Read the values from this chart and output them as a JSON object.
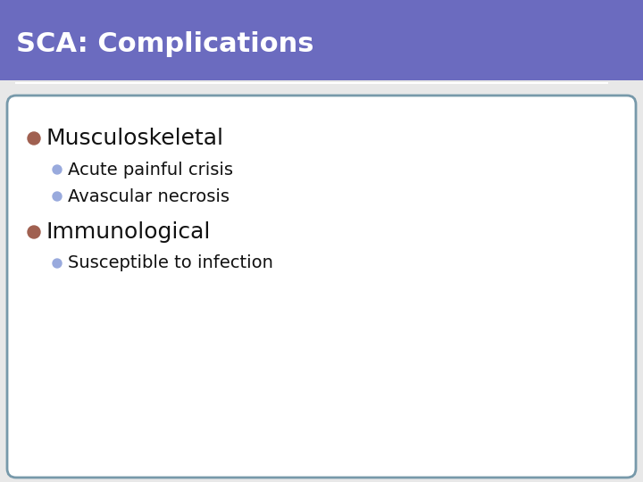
{
  "title": "SCA: Complications",
  "title_bg_color": "#6B6BBF",
  "title_text_color": "#ffffff",
  "title_fontsize": 22,
  "bg_color": "#ffffff",
  "slide_bg_color": "#e8e8e8",
  "border_color": "#7799aa",
  "header_line_color": "#ffffff",
  "bullet1_text": "Musculoskeletal",
  "bullet1_color": "#a06050",
  "bullet1_fontsize": 18,
  "sub_bullet_color": "#99aadd",
  "sub_bullet_fontsize": 14,
  "sub_bullets_1": [
    "Acute painful crisis",
    "Avascular necrosis"
  ],
  "bullet2_text": "Immunological",
  "bullet2_color": "#a06050",
  "bullet2_fontsize": 18,
  "sub_bullets_2": [
    "Susceptible to infection"
  ],
  "content_text_color": "#111111"
}
